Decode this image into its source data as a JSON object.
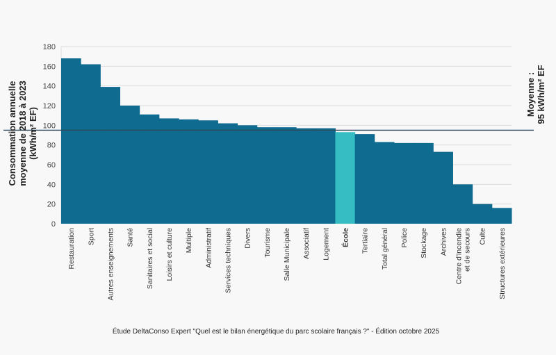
{
  "chart_data": {
    "type": "bar",
    "ylabel_lines": [
      "Consommation annuelle",
      "moyenne de 2018 à 2023",
      "(kWh/m² EF)"
    ],
    "ylim": [
      0,
      180
    ],
    "yticks": [
      0,
      20,
      40,
      60,
      80,
      100,
      120,
      140,
      160,
      180
    ],
    "grid": true,
    "categories": [
      "Restauration",
      "Sport",
      "Autres enseignements",
      "Santé",
      "Sanitaires et social",
      "Loisirs et culture",
      "Multiple",
      "Administratif",
      "Services techniques",
      "Divers",
      "Tourisme",
      "Salle Municipale",
      "Associatif",
      "Logement",
      "École",
      "Tertiaire",
      "Total général",
      "Police",
      "Stockage",
      "Archives",
      "Centre d'incendie\net de secours",
      "Culte",
      "Structures extérieures"
    ],
    "values": [
      168,
      162,
      139,
      120,
      111,
      107,
      106,
      105,
      102,
      100,
      98,
      98,
      97,
      97,
      93,
      91,
      83,
      82,
      82,
      73,
      40,
      20,
      16
    ],
    "highlight_category": "École",
    "mean": {
      "value": 95,
      "label_lines": [
        "Moyenne :",
        "95 kWh/m² EF"
      ]
    },
    "colors": {
      "bar": "#0f6b8f",
      "highlight": "#36bcc3",
      "mean_line": "#2f4a5a",
      "grid": "#dcdcdc"
    }
  },
  "source": "Étude DeltaConso Expert \"Quel est le bilan énergétique du parc scolaire français ?\" - Édition octobre 2025"
}
